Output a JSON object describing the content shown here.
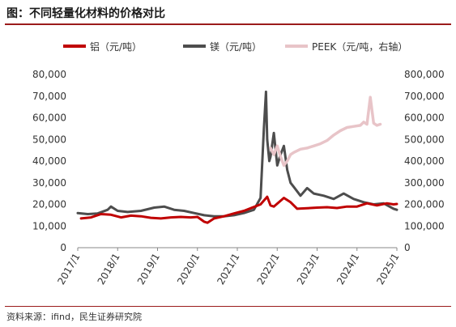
{
  "header": {
    "title": "图：不同轻量化材料的价格对比"
  },
  "footer": {
    "source": "资料来源：ifind，民生证券研究院"
  },
  "chart_data": {
    "type": "line",
    "title": "图：不同轻量化材料的价格对比",
    "x_tick_labels": [
      "2017/1",
      "2018/1",
      "2019/1",
      "2020/1",
      "2021/1",
      "2022/1",
      "2023/1",
      "2024/1",
      "2025/1"
    ],
    "xlim": [
      "2017-01",
      "2025-01"
    ],
    "y_left": {
      "ticks": [
        "0",
        "10,000",
        "20,000",
        "30,000",
        "40,000",
        "50,000",
        "60,000",
        "70,000",
        "80,000"
      ],
      "ylim": [
        0,
        80000
      ]
    },
    "y_right": {
      "ticks": [
        "0",
        "100,000",
        "200,000",
        "300,000",
        "400,000",
        "500,000",
        "600,000",
        "700,000",
        "800,000"
      ],
      "ylim": [
        0,
        800000
      ]
    },
    "legend_position": "top",
    "grid": false,
    "series": [
      {
        "name": "铝（元/吨）",
        "axis": "left",
        "color": "#c00000",
        "points": [
          [
            "2017-02",
            13500
          ],
          [
            "2017-05",
            14000
          ],
          [
            "2017-08",
            15500
          ],
          [
            "2017-11",
            15200
          ],
          [
            "2018-02",
            14000
          ],
          [
            "2018-05",
            14800
          ],
          [
            "2018-08",
            14500
          ],
          [
            "2018-11",
            13800
          ],
          [
            "2019-02",
            13500
          ],
          [
            "2019-05",
            14000
          ],
          [
            "2019-08",
            14200
          ],
          [
            "2019-11",
            14000
          ],
          [
            "2020-01",
            14200
          ],
          [
            "2020-03",
            12000
          ],
          [
            "2020-04",
            11500
          ],
          [
            "2020-06",
            13500
          ],
          [
            "2020-09",
            14500
          ],
          [
            "2020-12",
            15800
          ],
          [
            "2021-03",
            17000
          ],
          [
            "2021-06",
            18800
          ],
          [
            "2021-08",
            20000
          ],
          [
            "2021-10",
            23500
          ],
          [
            "2021-11",
            19500
          ],
          [
            "2021-12",
            19000
          ],
          [
            "2022-03",
            23000
          ],
          [
            "2022-05",
            21000
          ],
          [
            "2022-07",
            18000
          ],
          [
            "2022-10",
            18200
          ],
          [
            "2023-01",
            18500
          ],
          [
            "2023-04",
            18700
          ],
          [
            "2023-07",
            18300
          ],
          [
            "2023-10",
            19000
          ],
          [
            "2024-01",
            19000
          ],
          [
            "2024-04",
            20500
          ],
          [
            "2024-07",
            19500
          ],
          [
            "2024-10",
            20500
          ],
          [
            "2024-12",
            20000
          ],
          [
            "2025-01",
            20200
          ]
        ]
      },
      {
        "name": "镁（元/吨）",
        "axis": "left",
        "color": "#4d4d4d",
        "points": [
          [
            "2017-01",
            16000
          ],
          [
            "2017-04",
            15500
          ],
          [
            "2017-07",
            15800
          ],
          [
            "2017-10",
            17500
          ],
          [
            "2017-11",
            19000
          ],
          [
            "2018-01",
            17000
          ],
          [
            "2018-04",
            16500
          ],
          [
            "2018-08",
            17000
          ],
          [
            "2018-12",
            18500
          ],
          [
            "2019-03",
            19000
          ],
          [
            "2019-06",
            17500
          ],
          [
            "2019-09",
            17000
          ],
          [
            "2019-12",
            16000
          ],
          [
            "2020-03",
            15000
          ],
          [
            "2020-06",
            14500
          ],
          [
            "2020-09",
            14500
          ],
          [
            "2020-12",
            15000
          ],
          [
            "2021-03",
            16000
          ],
          [
            "2021-06",
            17500
          ],
          [
            "2021-08",
            23000
          ],
          [
            "2021-09",
            55000
          ],
          [
            "2021-09-20",
            72000
          ],
          [
            "2021-10",
            50000
          ],
          [
            "2021-10-20",
            40000
          ],
          [
            "2021-11",
            42000
          ],
          [
            "2021-12",
            53000
          ],
          [
            "2022-01",
            38000
          ],
          [
            "2022-02",
            43000
          ],
          [
            "2022-03",
            47000
          ],
          [
            "2022-04",
            36000
          ],
          [
            "2022-05",
            30000
          ],
          [
            "2022-06",
            28000
          ],
          [
            "2022-08",
            24000
          ],
          [
            "2022-10",
            27500
          ],
          [
            "2022-12",
            25000
          ],
          [
            "2023-03",
            24000
          ],
          [
            "2023-06",
            22500
          ],
          [
            "2023-09",
            25000
          ],
          [
            "2023-12",
            22500
          ],
          [
            "2024-03",
            21000
          ],
          [
            "2024-06",
            20000
          ],
          [
            "2024-09",
            20500
          ],
          [
            "2024-12",
            18000
          ],
          [
            "2025-01",
            17500
          ]
        ]
      },
      {
        "name": "PEEK（元/吨，右轴）",
        "axis": "right",
        "color": "#e8c4c8",
        "points": [
          [
            "2021-11",
            460000
          ],
          [
            "2021-12",
            430000
          ],
          [
            "2022-01",
            470000
          ],
          [
            "2022-02",
            420000
          ],
          [
            "2022-03",
            380000
          ],
          [
            "2022-04",
            400000
          ],
          [
            "2022-05",
            430000
          ],
          [
            "2022-06",
            440000
          ],
          [
            "2022-08",
            455000
          ],
          [
            "2022-10",
            460000
          ],
          [
            "2022-12",
            470000
          ],
          [
            "2023-02",
            480000
          ],
          [
            "2023-04",
            495000
          ],
          [
            "2023-06",
            520000
          ],
          [
            "2023-08",
            540000
          ],
          [
            "2023-10",
            555000
          ],
          [
            "2023-12",
            560000
          ],
          [
            "2024-02",
            565000
          ],
          [
            "2024-03",
            580000
          ],
          [
            "2024-04",
            570000
          ],
          [
            "2024-05",
            695000
          ],
          [
            "2024-06",
            575000
          ],
          [
            "2024-07",
            565000
          ],
          [
            "2024-08",
            570000
          ]
        ]
      }
    ]
  }
}
